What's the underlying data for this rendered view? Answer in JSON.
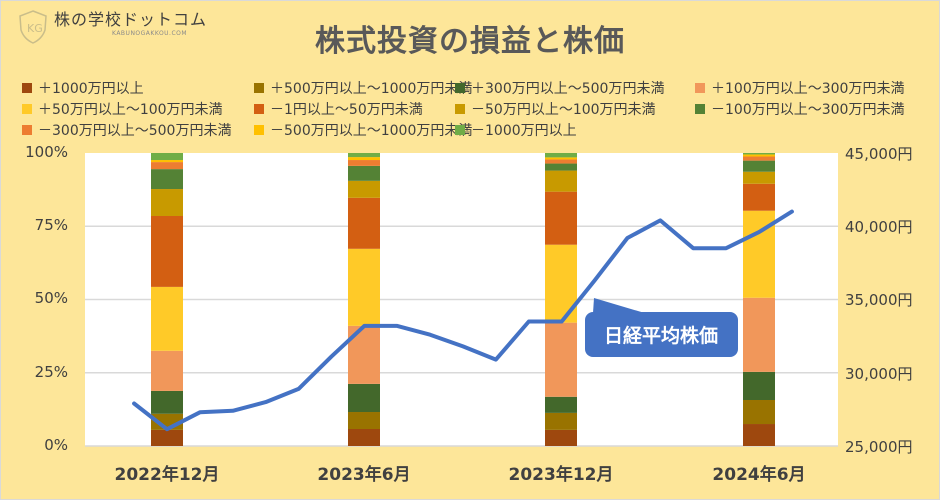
{
  "brand": {
    "name": "株の学校ドットコム",
    "sub": "KABUNOGAKKOU.COM"
  },
  "title": "株式投資の損益と株価",
  "legend": [
    {
      "label": "＋1000万円以上",
      "color": "#9e480e"
    },
    {
      "label": "＋500万円以上～1000万円未満",
      "color": "#997300"
    },
    {
      "label": "＋300万円以上～500万円未満",
      "color": "#43682b"
    },
    {
      "label": "＋100万円以上～300万円未満",
      "color": "#f1975a"
    },
    {
      "label": "＋50万円以上～100万円未満",
      "color": "#ffca28"
    },
    {
      "label": "－1円以上～50万円未満",
      "color": "#d35f12"
    },
    {
      "label": "－50万円以上～100万円未満",
      "color": "#c89a00"
    },
    {
      "label": "－100万円以上～300万円未満",
      "color": "#548235"
    },
    {
      "label": "－300万円以上～500万円未満",
      "color": "#ed7d31"
    },
    {
      "label": "－500万円以上～1000万円未満",
      "color": "#ffc000"
    },
    {
      "label": "－1000万円以上",
      "color": "#70ad47"
    }
  ],
  "axes": {
    "y_left": [
      "100%",
      "75%",
      "50%",
      "25%",
      "0%"
    ],
    "y_right": [
      "45,000円",
      "40,000円",
      "35,000円",
      "30,000円",
      "25,000円"
    ],
    "x": [
      "2022年12月",
      "2023年6月",
      "2023年12月",
      "2024年6月"
    ]
  },
  "callout": {
    "label": "日経平均株価",
    "color": "#4472c4"
  },
  "chart_data": {
    "type": "bar",
    "subtype": "stacked-100-bar-with-line",
    "title": "株式投資の損益と株価",
    "categories": [
      "2022年12月",
      "2023年6月",
      "2023年12月",
      "2024年6月"
    ],
    "series": [
      {
        "name": "＋1000万円以上",
        "values": [
          5.5,
          5.8,
          5.5,
          7.5
        ]
      },
      {
        "name": "＋500万円以上～1000万円未満",
        "values": [
          5.5,
          5.8,
          5.8,
          8.2
        ]
      },
      {
        "name": "＋300万円以上～500万円未満",
        "values": [
          7.8,
          9.6,
          5.5,
          9.6
        ]
      },
      {
        "name": "＋100万円以上～300万円未満",
        "values": [
          13.7,
          19.8,
          25.3,
          25.3
        ]
      },
      {
        "name": "＋50万円以上～100万円未満",
        "values": [
          21.8,
          26.3,
          26.6,
          29.7
        ]
      },
      {
        "name": "－1円以上～50万円未満",
        "values": [
          24.2,
          17.4,
          18.1,
          9.2
        ]
      },
      {
        "name": "－50万円以上～100万円未満",
        "values": [
          9.2,
          5.8,
          7.2,
          4.1
        ]
      },
      {
        "name": "－100万円以上～300万円未満",
        "values": [
          6.8,
          5.1,
          2.4,
          3.8
        ]
      },
      {
        "name": "－300万円以上～500万円未満",
        "values": [
          2.4,
          2.0,
          1.4,
          1.4
        ]
      },
      {
        "name": "－500万円以上～1000万円未満",
        "values": [
          0.7,
          1.0,
          0.7,
          0.7
        ]
      },
      {
        "name": "－1000万円以上",
        "values": [
          2.4,
          1.4,
          1.5,
          0.5
        ]
      }
    ],
    "ylabel_left": "",
    "ylim_left": [
      0,
      100
    ],
    "yticks_left": [
      "0%",
      "25%",
      "50%",
      "75%",
      "100%"
    ],
    "line": {
      "name": "日経平均株価",
      "axis": "right",
      "ylim": [
        25000,
        45000
      ],
      "yticks": [
        "25,000円",
        "30,000円",
        "35,000円",
        "40,000円",
        "45,000円"
      ],
      "values": [
        27900,
        26150,
        27300,
        27400,
        28000,
        28900,
        31100,
        33200,
        33200,
        32600,
        31800,
        30900,
        33500,
        33500,
        36300,
        39200,
        40400,
        38500,
        38500,
        39600,
        41000
      ],
      "note": "monthly points, index 1 = 2022年12月, 7 = 2023年6月, 13 = 2023年12月, 19 = 2024年6月"
    },
    "grid": true,
    "legend_position": "top"
  }
}
